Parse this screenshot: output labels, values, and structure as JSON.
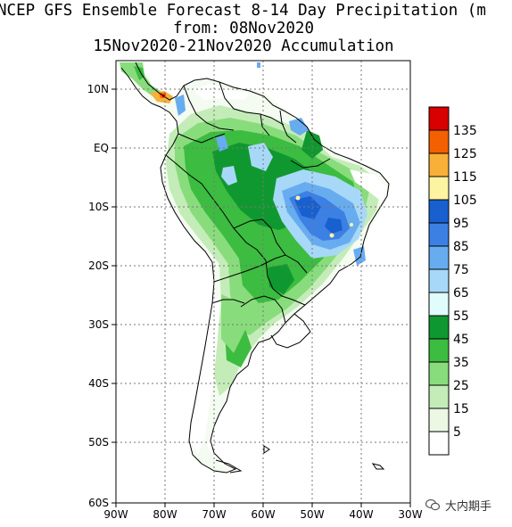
{
  "title": {
    "line1": "NCEP GFS Ensemble Forecast 8-14 Day Precipitation (m",
    "line2": "from: 08Nov2020",
    "line3": "15Nov2020-21Nov2020 Accumulation"
  },
  "axes": {
    "lat_labels": [
      "10N",
      "EQ",
      "10S",
      "20S",
      "30S",
      "40S",
      "50S",
      "60S"
    ],
    "lon_labels": [
      "90W",
      "80W",
      "70W",
      "60W",
      "50W",
      "40W",
      "30W"
    ]
  },
  "legend": {
    "levels": [
      "135",
      "125",
      "115",
      "105",
      "95",
      "85",
      "75",
      "65",
      "55",
      "45",
      "35",
      "25",
      "15",
      "5"
    ],
    "colors": [
      "#d80000",
      "#f46000",
      "#f8b038",
      "#fcf4a0",
      "#1860d0",
      "#3c80e4",
      "#68acf0",
      "#a8d8f8",
      "#e0fcfc",
      "#109830",
      "#3cbc40",
      "#88dc7c",
      "#c4ecb8",
      "#ecf8e4",
      "#ffffff"
    ]
  },
  "watermark": {
    "text": "大内期手"
  }
}
